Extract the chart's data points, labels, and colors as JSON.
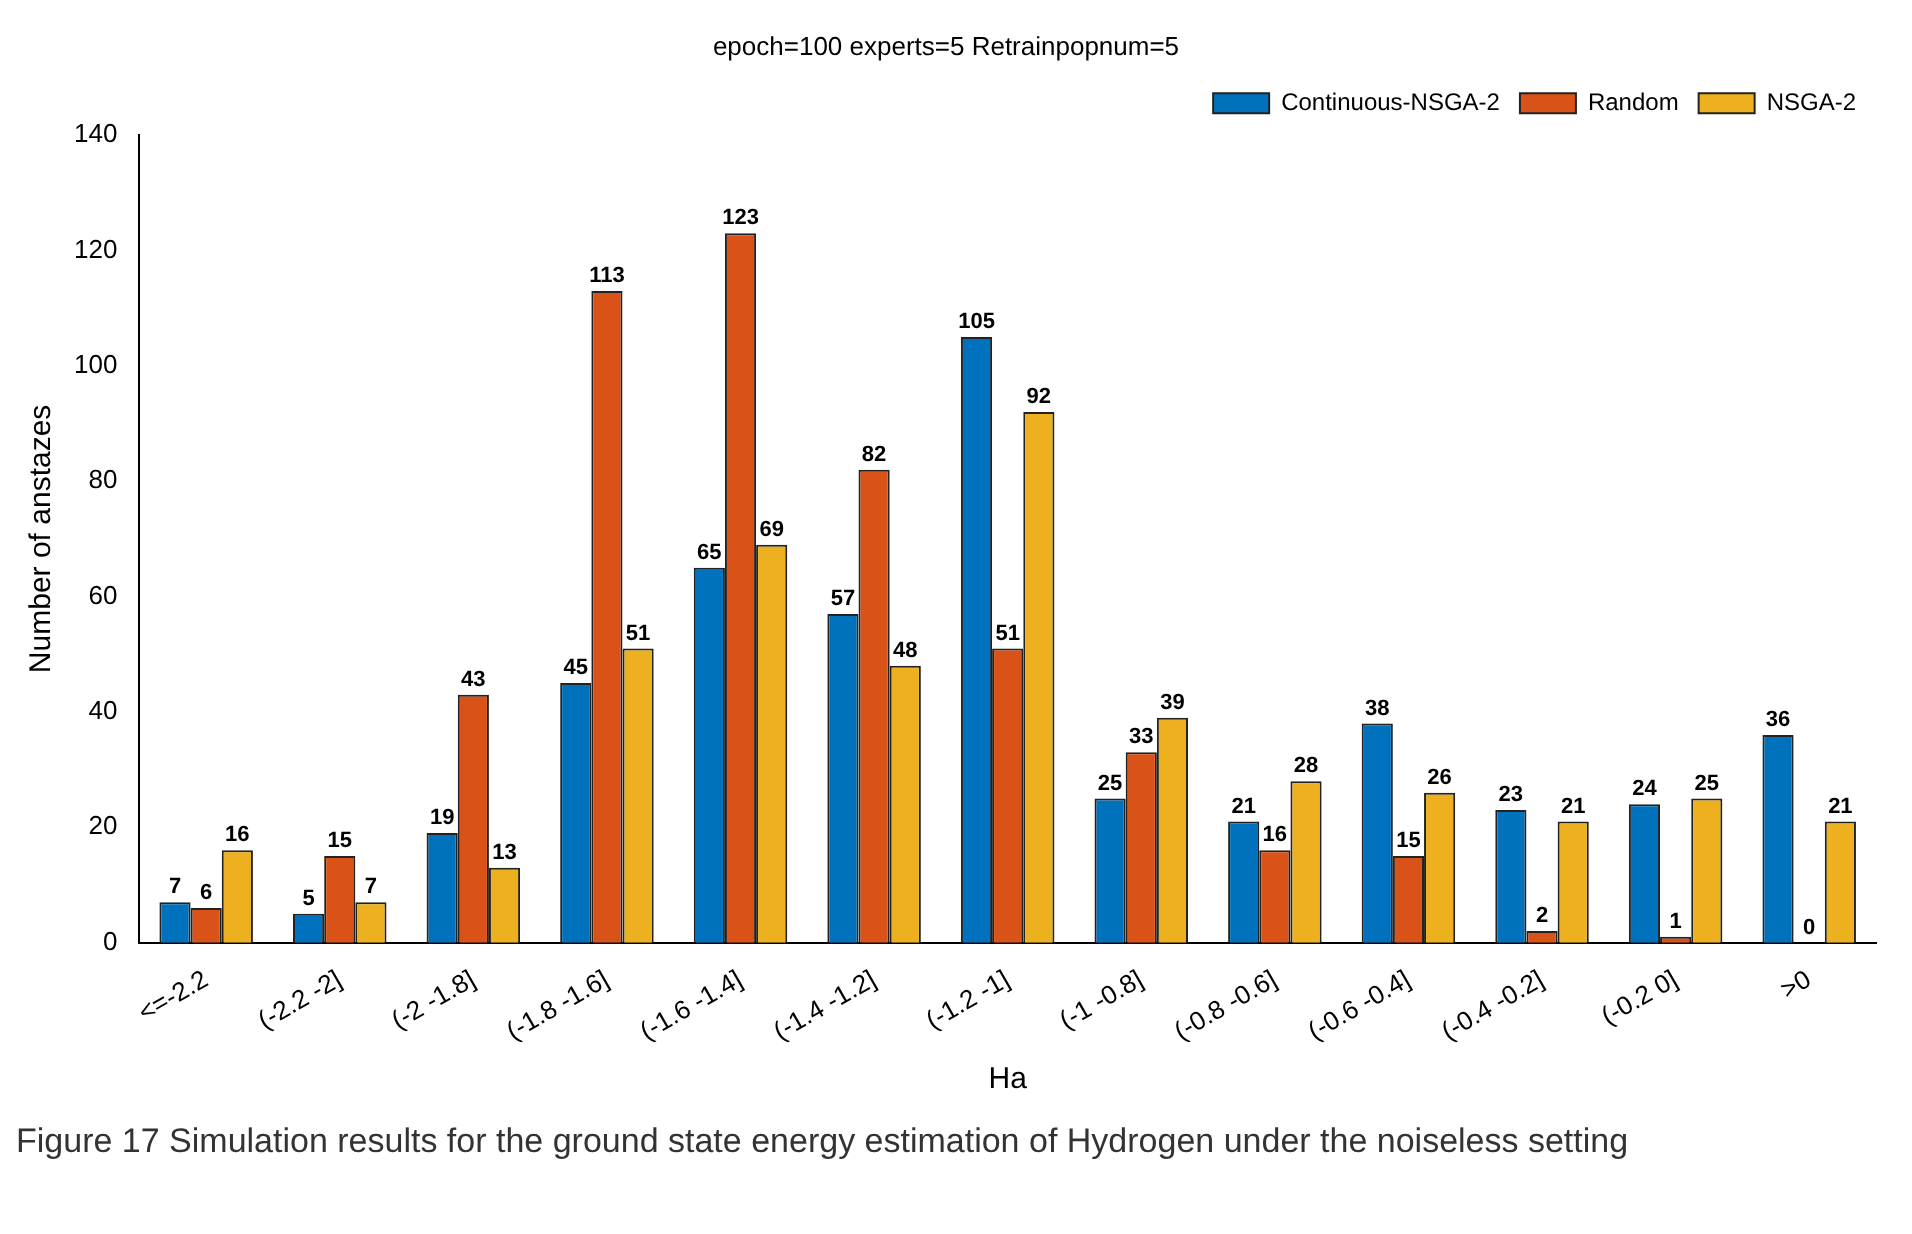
{
  "chart_data": {
    "type": "bar",
    "title": "epoch=100 experts=5 Retrainpopnum=5",
    "xlabel": "Ha",
    "ylabel": "Number of anstazes",
    "categories": [
      "<=-2.2",
      "(-2.2 -2]",
      "(-2 -1.8]",
      "(-1.8 -1.6]",
      "(-1.6 -1.4]",
      "(-1.4 -1.2]",
      "(-1.2 -1]",
      "(-1 -0.8]",
      "(-0.8 -0.6]",
      "(-0.6 -0.4]",
      "(-0.4 -0.2]",
      "(-0.2 0]",
      ">0"
    ],
    "series": [
      {
        "name": "Continuous-NSGA-2",
        "color": "#0072bd",
        "values": [
          7,
          5,
          19,
          45,
          65,
          57,
          105,
          25,
          21,
          38,
          23,
          24,
          36
        ]
      },
      {
        "name": "Random",
        "color": "#d95319",
        "values": [
          6,
          15,
          43,
          113,
          123,
          82,
          51,
          33,
          16,
          15,
          2,
          1,
          0
        ]
      },
      {
        "name": "NSGA-2",
        "color": "#edb120",
        "values": [
          16,
          7,
          13,
          51,
          69,
          48,
          92,
          39,
          28,
          26,
          21,
          25,
          21
        ]
      }
    ],
    "ylim": [
      0,
      140
    ],
    "yticks": [
      0,
      20,
      40,
      60,
      80,
      100,
      120,
      140
    ],
    "grid": false,
    "legend": "top right",
    "data_labels": true,
    "annotations": [
      "Figure 17  Simulation results for the ground state energy estimation of Hydrogen under the noiseless setting"
    ]
  }
}
